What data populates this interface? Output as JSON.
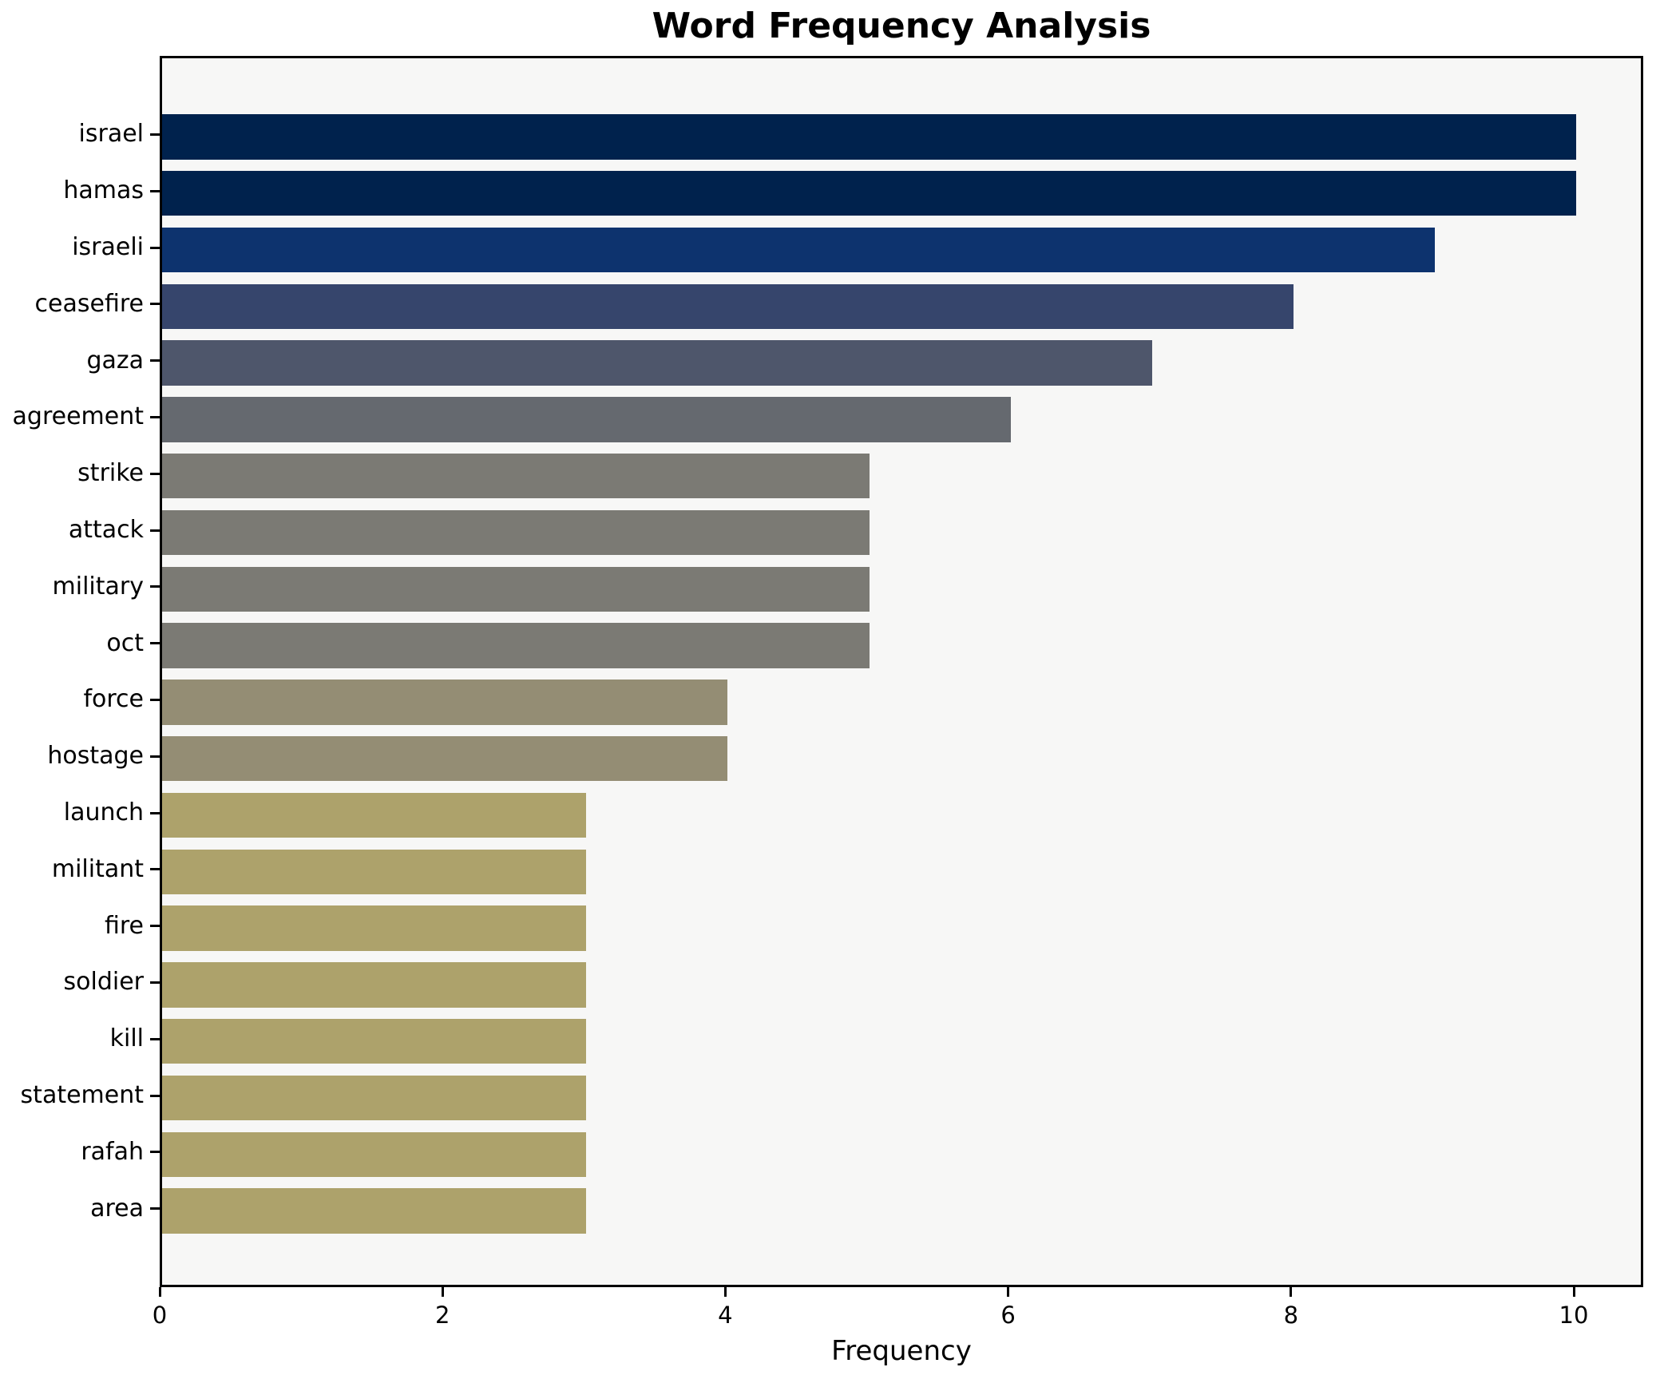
{
  "chart_data": {
    "type": "bar",
    "orientation": "horizontal",
    "title": "Word Frequency Analysis",
    "xlabel": "Frequency",
    "ylabel": "",
    "categories": [
      "israel",
      "hamas",
      "israeli",
      "ceasefire",
      "gaza",
      "agreement",
      "strike",
      "attack",
      "military",
      "oct",
      "force",
      "hostage",
      "launch",
      "militant",
      "fire",
      "soldier",
      "kill",
      "statement",
      "rafah",
      "area"
    ],
    "values": [
      10,
      10,
      9,
      8,
      7,
      6,
      5,
      5,
      5,
      5,
      4,
      4,
      3,
      3,
      3,
      3,
      3,
      3,
      3,
      3
    ],
    "bar_colors": [
      "#00224d",
      "#00224d",
      "#0d336e",
      "#36456c",
      "#4e566b",
      "#65696f",
      "#7b7a74",
      "#7b7a74",
      "#7b7a74",
      "#7b7a74",
      "#948d74",
      "#948d74",
      "#ada26b",
      "#ada26b",
      "#ada26b",
      "#ada26b",
      "#ada26b",
      "#ada26b",
      "#ada26b",
      "#ada26b"
    ],
    "xticks": [
      0,
      2,
      4,
      6,
      8,
      10
    ],
    "xlim": [
      0,
      10.5
    ],
    "grid": false,
    "legend": "none",
    "plot_background": "#f7f7f6",
    "figure_background": "#ffffff",
    "spine_color": "#000000",
    "text_color": "#000000"
  }
}
